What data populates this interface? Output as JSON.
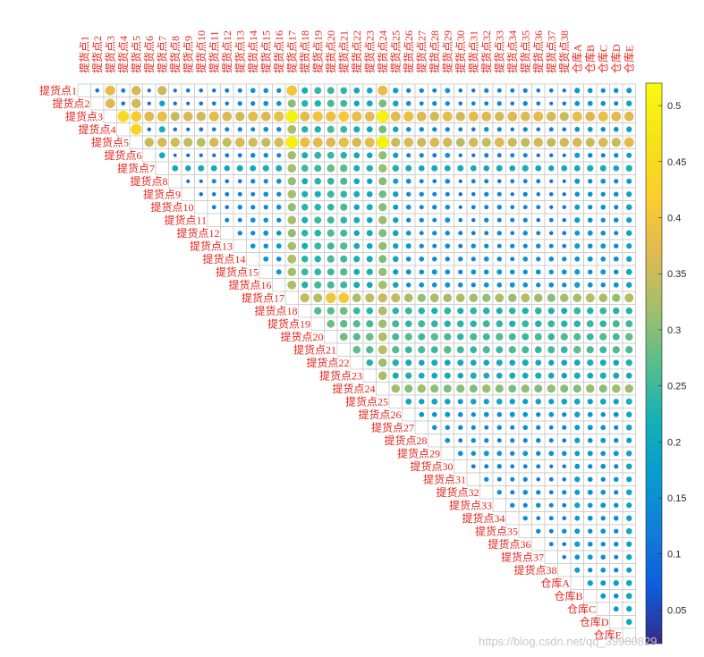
{
  "chart_data": {
    "type": "heatmap",
    "subtype": "upper-triangular correlation bubble matrix",
    "labels": [
      "提货点1",
      "提货点2",
      "提货点3",
      "提货点4",
      "提货点5",
      "提货点6",
      "提货点7",
      "提货点8",
      "提货点9",
      "提货点10",
      "提货点11",
      "提货点12",
      "提货点13",
      "提货点14",
      "提货点15",
      "提货点16",
      "提货点17",
      "提货点18",
      "提货点19",
      "提货点20",
      "提货点21",
      "提货点22",
      "提货点23",
      "提货点24",
      "提货点25",
      "提货点26",
      "提货点27",
      "提货点28",
      "提货点29",
      "提货点30",
      "提货点31",
      "提货点32",
      "提货点33",
      "提货点34",
      "提货点35",
      "提货点36",
      "提货点37",
      "提货点38",
      "仓库A",
      "仓库B",
      "仓库C",
      "仓库D",
      "仓库E"
    ],
    "value_estimates": {
      "description": "Approximate cell values read from color/size; hub nodes correlate strongly with others",
      "node_strength": [
        0.11,
        0.1,
        0.42,
        0.12,
        0.4,
        0.08,
        0.22,
        0.08,
        0.08,
        0.1,
        0.12,
        0.12,
        0.14,
        0.15,
        0.16,
        0.16,
        0.36,
        0.25,
        0.26,
        0.28,
        0.28,
        0.22,
        0.22,
        0.34,
        0.2,
        0.16,
        0.14,
        0.14,
        0.16,
        0.1,
        0.12,
        0.14,
        0.14,
        0.12,
        0.14,
        0.12,
        0.1,
        0.1,
        0.18,
        0.16,
        0.16,
        0.15,
        0.2
      ],
      "notable_cells": [
        {
          "row": "提货点1",
          "col": "提货点3",
          "value": 0.38
        },
        {
          "row": "提货点1",
          "col": "提货点5",
          "value": 0.36
        },
        {
          "row": "提货点1",
          "col": "提货点7",
          "value": 0.35
        },
        {
          "row": "提货点1",
          "col": "提货点17",
          "value": 0.4
        },
        {
          "row": "提货点1",
          "col": "提货点24",
          "value": 0.38
        },
        {
          "row": "提货点3",
          "col": "提货点4",
          "value": 0.45
        },
        {
          "row": "提货点3",
          "col": "提货点17",
          "value": 0.5
        },
        {
          "row": "提货点3",
          "col": "提货点24",
          "value": 0.5
        },
        {
          "row": "提货点4",
          "col": "提货点5",
          "value": 0.44
        },
        {
          "row": "提货点5",
          "col": "提货点17",
          "value": 0.5
        },
        {
          "row": "提货点5",
          "col": "提货点24",
          "value": 0.5
        },
        {
          "row": "提货点17",
          "col": "提货点20",
          "value": 0.4
        },
        {
          "row": "提货点17",
          "col": "提货点21",
          "value": 0.41
        }
      ]
    },
    "colorbar": {
      "min": 0.02,
      "max": 0.52,
      "ticks": [
        0.05,
        0.1,
        0.15,
        0.2,
        0.25,
        0.3,
        0.35,
        0.4,
        0.45,
        0.5
      ],
      "tick_labels": [
        "0.05",
        "0.1",
        "0.15",
        "0.2",
        "0.25",
        "0.3",
        "0.35",
        "0.4",
        "0.45",
        "0.5"
      ],
      "colormap": "parula"
    },
    "title": "",
    "xlabel": "",
    "ylabel": ""
  },
  "watermark": "https://blog.csdn.net/qq_39980829",
  "colors": {
    "label": "#e8231c",
    "grid": "#c8c8c8"
  }
}
